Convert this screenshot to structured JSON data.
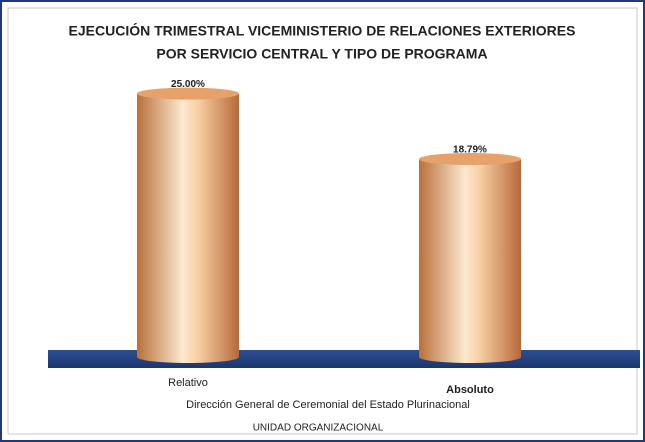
{
  "chart_data": {
    "type": "bar",
    "title": [
      "EJECUCIÓN TRIMESTRAL VICEMINISTERIO DE RELACIONES EXTERIORES",
      "POR SERVICIO CENTRAL Y TIPO DE PROGRAMA"
    ],
    "subtitle": "Dirección General de Ceremonial del Estado Plurinacional",
    "x_label": "UNIDAD ORGANIZACIONAL",
    "categories": [
      "Relativo",
      "Absoluto"
    ],
    "values": [
      25,
      18.79
    ],
    "value_labels": [
      "25.00%",
      "18.79%"
    ],
    "color": "#e7a26c",
    "ylim": [
      0,
      28
    ]
  }
}
